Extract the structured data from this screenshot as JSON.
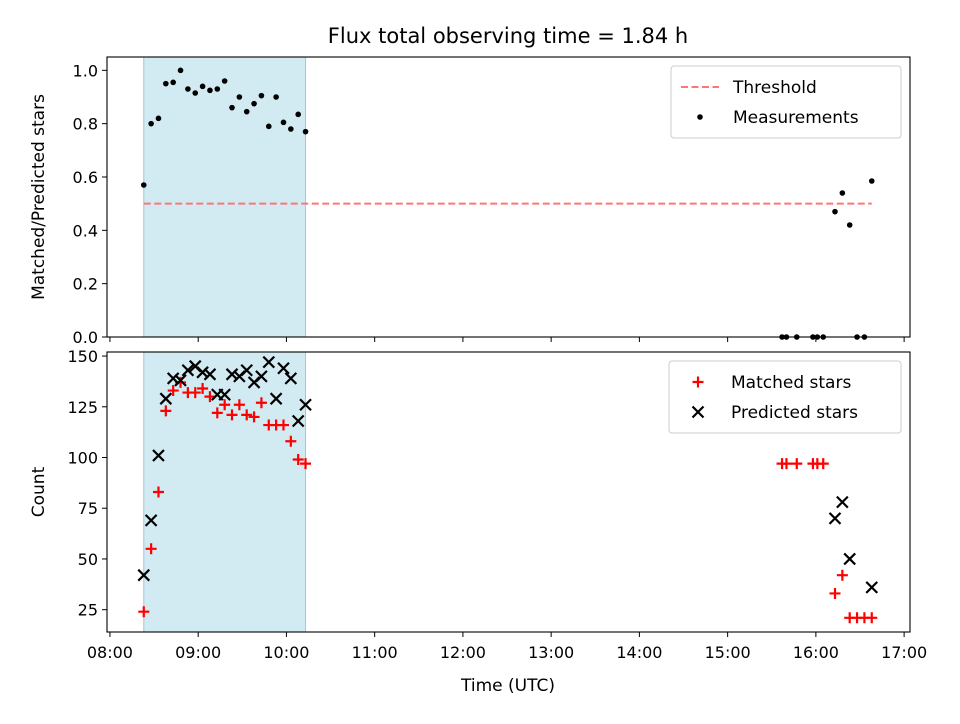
{
  "chart_data": {
    "type": "scatter",
    "title": "Flux total observing time = 1.84 h",
    "xlabel": "Time (UTC)",
    "x_ticks": [
      "08:00",
      "09:00",
      "10:00",
      "11:00",
      "12:00",
      "13:00",
      "14:00",
      "15:00",
      "16:00",
      "17:00"
    ],
    "xlim": [
      "07:58",
      "17:04"
    ],
    "shaded_interval": {
      "start": "08:23",
      "end": "10:13",
      "color": "#add8e6"
    },
    "panels": [
      {
        "ylabel": "Matched/Predicted stars",
        "ylim": [
          0,
          1.05
        ],
        "y_ticks": [
          "0.0",
          "0.2",
          "0.4",
          "0.6",
          "0.8",
          "1.0"
        ],
        "legend_position": "top-right",
        "threshold": {
          "name": "Threshold",
          "value": 0.5,
          "x_start": "08:23",
          "x_end": "16:38",
          "color": "#ff7575"
        },
        "series": [
          {
            "name": "Measurements",
            "marker": "dot",
            "color": "#000000",
            "points": [
              [
                "08:23",
                0.57
              ],
              [
                "08:28",
                0.8
              ],
              [
                "08:33",
                0.82
              ],
              [
                "08:38",
                0.95
              ],
              [
                "08:43",
                0.955
              ],
              [
                "08:48",
                1.0
              ],
              [
                "08:53",
                0.93
              ],
              [
                "08:58",
                0.915
              ],
              [
                "09:03",
                0.94
              ],
              [
                "09:08",
                0.925
              ],
              [
                "09:13",
                0.93
              ],
              [
                "09:18",
                0.96
              ],
              [
                "09:23",
                0.86
              ],
              [
                "09:28",
                0.9
              ],
              [
                "09:33",
                0.845
              ],
              [
                "09:38",
                0.875
              ],
              [
                "09:43",
                0.905
              ],
              [
                "09:48",
                0.79
              ],
              [
                "09:53",
                0.9
              ],
              [
                "09:58",
                0.805
              ],
              [
                "10:03",
                0.78
              ],
              [
                "10:08",
                0.835
              ],
              [
                "10:13",
                0.77
              ],
              [
                "15:37",
                0.0
              ],
              [
                "15:40",
                0.0
              ],
              [
                "15:47",
                0.0
              ],
              [
                "15:58",
                0.0
              ],
              [
                "16:01",
                0.0
              ],
              [
                "16:05",
                0.0
              ],
              [
                "16:13",
                0.47
              ],
              [
                "16:18",
                0.54
              ],
              [
                "16:23",
                0.42
              ],
              [
                "16:28",
                0.0
              ],
              [
                "16:33",
                0.0
              ],
              [
                "16:38",
                0.585
              ]
            ]
          }
        ]
      },
      {
        "ylabel": "Count",
        "ylim": [
          14,
          152
        ],
        "y_ticks": [
          "25",
          "50",
          "75",
          "100",
          "125",
          "150"
        ],
        "legend_position": "top-right",
        "series": [
          {
            "name": "Matched stars",
            "marker": "plus",
            "color": "#ff0000",
            "points": [
              [
                "08:23",
                24
              ],
              [
                "08:28",
                55
              ],
              [
                "08:33",
                83
              ],
              [
                "08:38",
                123
              ],
              [
                "08:43",
                133
              ],
              [
                "08:48",
                137
              ],
              [
                "08:53",
                132
              ],
              [
                "08:58",
                132
              ],
              [
                "09:03",
                134
              ],
              [
                "09:08",
                130
              ],
              [
                "09:13",
                122
              ],
              [
                "09:18",
                126
              ],
              [
                "09:23",
                121
              ],
              [
                "09:28",
                126
              ],
              [
                "09:33",
                121
              ],
              [
                "09:38",
                120
              ],
              [
                "09:43",
                127
              ],
              [
                "09:48",
                116
              ],
              [
                "09:53",
                116
              ],
              [
                "09:58",
                116
              ],
              [
                "10:03",
                108
              ],
              [
                "10:08",
                99
              ],
              [
                "10:13",
                97
              ],
              [
                "15:37",
                97
              ],
              [
                "15:40",
                97
              ],
              [
                "15:47",
                97
              ],
              [
                "15:58",
                97
              ],
              [
                "16:01",
                97
              ],
              [
                "16:05",
                97
              ],
              [
                "16:13",
                33
              ],
              [
                "16:18",
                42
              ],
              [
                "16:23",
                21
              ],
              [
                "16:28",
                21
              ],
              [
                "16:33",
                21
              ],
              [
                "16:38",
                21
              ]
            ]
          },
          {
            "name": "Predicted stars",
            "marker": "x",
            "color": "#000000",
            "points": [
              [
                "08:23",
                42
              ],
              [
                "08:28",
                69
              ],
              [
                "08:33",
                101
              ],
              [
                "08:38",
                129
              ],
              [
                "08:43",
                139
              ],
              [
                "08:48",
                138
              ],
              [
                "08:53",
                143
              ],
              [
                "08:58",
                145
              ],
              [
                "09:03",
                142
              ],
              [
                "09:08",
                141
              ],
              [
                "09:13",
                131
              ],
              [
                "09:18",
                131
              ],
              [
                "09:23",
                141
              ],
              [
                "09:28",
                140
              ],
              [
                "09:33",
                143
              ],
              [
                "09:38",
                137
              ],
              [
                "09:43",
                140
              ],
              [
                "09:48",
                147
              ],
              [
                "09:53",
                129
              ],
              [
                "09:58",
                144
              ],
              [
                "10:03",
                139
              ],
              [
                "10:08",
                118
              ],
              [
                "10:13",
                126
              ],
              [
                "16:13",
                70
              ],
              [
                "16:18",
                78
              ],
              [
                "16:23",
                50
              ],
              [
                "16:38",
                36
              ]
            ]
          }
        ]
      }
    ]
  }
}
